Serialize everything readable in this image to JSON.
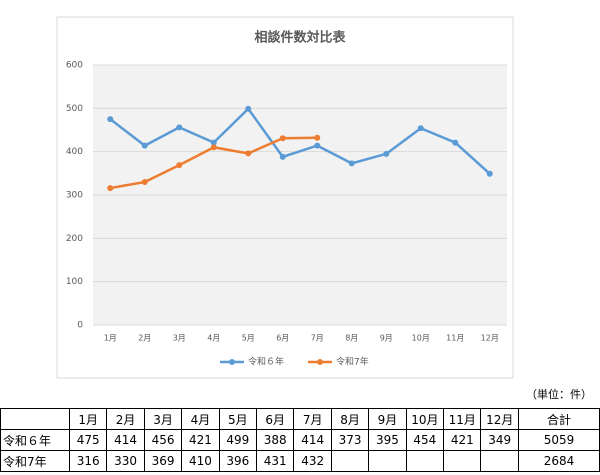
{
  "chart_data": {
    "type": "line",
    "title": "相談件数対比表",
    "categories": [
      "1月",
      "2月",
      "3月",
      "4月",
      "5月",
      "6月",
      "7月",
      "8月",
      "9月",
      "10月",
      "11月",
      "12月"
    ],
    "series": [
      {
        "name": "令和６年",
        "color": "#5b9bd5",
        "values": [
          475,
          414,
          456,
          421,
          499,
          388,
          414,
          373,
          395,
          454,
          421,
          349
        ]
      },
      {
        "name": "令和7年",
        "color": "#ed7d31",
        "values": [
          316,
          330,
          369,
          410,
          396,
          431,
          432,
          null,
          null,
          null,
          null,
          null
        ]
      }
    ],
    "ylim": [
      0,
      600
    ],
    "yticks": [
      0,
      100,
      200,
      300,
      400,
      500,
      600
    ],
    "grid": true,
    "legend": "bottom"
  },
  "table": {
    "note": "（単位：件）",
    "header": [
      "1月",
      "2月",
      "3月",
      "4月",
      "5月",
      "6月",
      "7月",
      "8月",
      "9月",
      "10月",
      "11月",
      "12月",
      "合計"
    ],
    "rows": [
      {
        "label": "令和６年",
        "values": [
          475,
          414,
          456,
          421,
          499,
          388,
          414,
          373,
          395,
          454,
          421,
          349
        ],
        "total": 5059
      },
      {
        "label": "令和7年",
        "values": [
          316,
          330,
          369,
          410,
          396,
          431,
          432,
          null,
          null,
          null,
          null,
          null
        ],
        "total": 2684
      }
    ]
  }
}
